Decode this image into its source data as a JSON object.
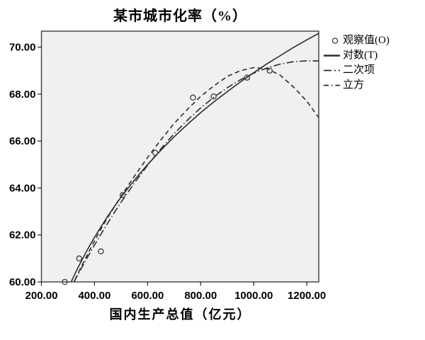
{
  "chart_data": {
    "type": "scatter",
    "subtype": "curve-estimation (SPSS style)",
    "title": "某市城市化率（%）",
    "xlabel": "国内生产总值（亿元）",
    "ylabel": "",
    "xlim": [
      200,
      1245
    ],
    "ylim": [
      60,
      70.68
    ],
    "grid": false,
    "legend_position": "outside-top-right",
    "plot_bg_color": "#f0f0ee",
    "frame_color": "#3c3c3c",
    "line_color": "#2b2b2b",
    "marker_color": "#3c3c3c",
    "xticks": [
      200,
      400,
      600,
      800,
      1000,
      1200
    ],
    "xtick_labels": [
      "200.00",
      "400.00",
      "600.00",
      "800.00",
      "1000.00",
      "1200.00"
    ],
    "yticks": [
      60,
      62,
      64,
      66,
      68,
      70
    ],
    "ytick_labels": [
      "60.00",
      "62.00",
      "64.00",
      "66.00",
      "68.00",
      "70.00"
    ],
    "series": [
      {
        "name": "观察值(O)",
        "kind": "scatter",
        "marker": "open-circle",
        "points": [
          [
            288,
            60.0
          ],
          [
            342,
            61.0
          ],
          [
            424,
            61.3
          ],
          [
            506,
            63.7
          ],
          [
            629,
            65.5
          ],
          [
            771,
            67.85
          ],
          [
            849,
            67.9
          ],
          [
            975,
            68.7
          ],
          [
            1060,
            69.0
          ]
        ]
      },
      {
        "name": "对数(T)",
        "kind": "line",
        "style": "solid",
        "points": [
          [
            295,
            59.57
          ],
          [
            310,
            59.95
          ],
          [
            325,
            60.31
          ],
          [
            340,
            60.66
          ],
          [
            360,
            61.09
          ],
          [
            380,
            61.51
          ],
          [
            400,
            61.9
          ],
          [
            425,
            62.36
          ],
          [
            450,
            62.8
          ],
          [
            475,
            63.21
          ],
          [
            500,
            63.61
          ],
          [
            525,
            63.98
          ],
          [
            550,
            64.33
          ],
          [
            575,
            64.67
          ],
          [
            600,
            65.0
          ],
          [
            650,
            65.61
          ],
          [
            700,
            66.18
          ],
          [
            750,
            66.71
          ],
          [
            800,
            67.21
          ],
          [
            850,
            67.67
          ],
          [
            900,
            68.1
          ],
          [
            950,
            68.52
          ],
          [
            1000,
            68.91
          ],
          [
            1050,
            69.29
          ],
          [
            1100,
            69.64
          ],
          [
            1150,
            69.99
          ],
          [
            1200,
            70.31
          ],
          [
            1250,
            70.62
          ]
        ]
      },
      {
        "name": "二次项",
        "kind": "line",
        "style": "dash-dot",
        "points": [
          [
            302,
            59.5
          ],
          [
            305,
            59.62
          ],
          [
            325,
            60.05
          ],
          [
            350,
            60.57
          ],
          [
            375,
            61.08
          ],
          [
            400,
            61.57
          ],
          [
            425,
            62.05
          ],
          [
            450,
            62.51
          ],
          [
            475,
            62.96
          ],
          [
            500,
            63.39
          ],
          [
            550,
            64.21
          ],
          [
            600,
            64.97
          ],
          [
            650,
            65.67
          ],
          [
            700,
            66.31
          ],
          [
            750,
            66.89
          ],
          [
            800,
            67.41
          ],
          [
            850,
            67.87
          ],
          [
            900,
            68.27
          ],
          [
            950,
            68.61
          ],
          [
            1000,
            68.89
          ],
          [
            1050,
            69.11
          ],
          [
            1100,
            69.28
          ],
          [
            1150,
            69.38
          ],
          [
            1200,
            69.42
          ],
          [
            1245,
            69.41
          ]
        ]
      },
      {
        "name": "立方",
        "kind": "line",
        "style": "dash",
        "points": [
          [
            303,
            59.5
          ],
          [
            305,
            59.55
          ],
          [
            325,
            60.05
          ],
          [
            350,
            60.65
          ],
          [
            375,
            61.2
          ],
          [
            400,
            61.75
          ],
          [
            425,
            62.27
          ],
          [
            450,
            62.75
          ],
          [
            475,
            63.2
          ],
          [
            500,
            63.65
          ],
          [
            550,
            64.5
          ],
          [
            600,
            65.3
          ],
          [
            650,
            66.05
          ],
          [
            700,
            66.75
          ],
          [
            750,
            67.35
          ],
          [
            800,
            67.9
          ],
          [
            850,
            68.35
          ],
          [
            900,
            68.75
          ],
          [
            950,
            69.0
          ],
          [
            1000,
            69.13
          ],
          [
            1050,
            69.08
          ],
          [
            1100,
            68.8
          ],
          [
            1150,
            68.3
          ],
          [
            1200,
            67.7
          ],
          [
            1245,
            67.0
          ]
        ]
      }
    ]
  }
}
